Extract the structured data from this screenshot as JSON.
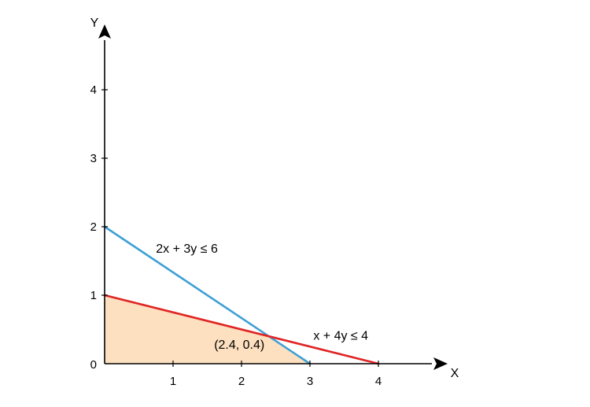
{
  "chart_data": {
    "type": "line",
    "xlabel": "X",
    "ylabel": "Y",
    "xlim": [
      0,
      4.8
    ],
    "ylim": [
      0,
      4.8
    ],
    "x_ticks": [
      {
        "value": 0,
        "label": "0"
      },
      {
        "value": 1,
        "label": "1"
      },
      {
        "value": 2,
        "label": "2"
      },
      {
        "value": 3,
        "label": "3"
      },
      {
        "value": 4,
        "label": "4"
      }
    ],
    "y_ticks": [
      {
        "value": 1,
        "label": "1"
      },
      {
        "value": 2,
        "label": "2"
      },
      {
        "value": 3,
        "label": "3"
      },
      {
        "value": 4,
        "label": "4"
      }
    ],
    "grid": false,
    "series": [
      {
        "name": "2x + 3y ≤ 6",
        "color": "#3d9fd6",
        "points": [
          [
            0,
            2
          ],
          [
            3,
            0
          ]
        ]
      },
      {
        "name": "x + 4y ≤ 4",
        "color": "#e02424",
        "points": [
          [
            0,
            1
          ],
          [
            4,
            0
          ]
        ]
      }
    ],
    "feasible_region": {
      "color": "#fde0bf",
      "vertices": [
        [
          0,
          0
        ],
        [
          0,
          1
        ],
        [
          2.4,
          0.4
        ],
        [
          3,
          0
        ]
      ]
    },
    "annotations": [
      {
        "id": "line1",
        "text": "2x + 3y ≤ 6",
        "at": [
          0.75,
          1.62
        ]
      },
      {
        "id": "line2",
        "text": "x + 4y ≤ 4",
        "at": [
          3.05,
          0.35
        ]
      },
      {
        "id": "intersection",
        "text": "(2.4, 0.4)",
        "at": [
          1.6,
          0.22
        ]
      }
    ]
  }
}
